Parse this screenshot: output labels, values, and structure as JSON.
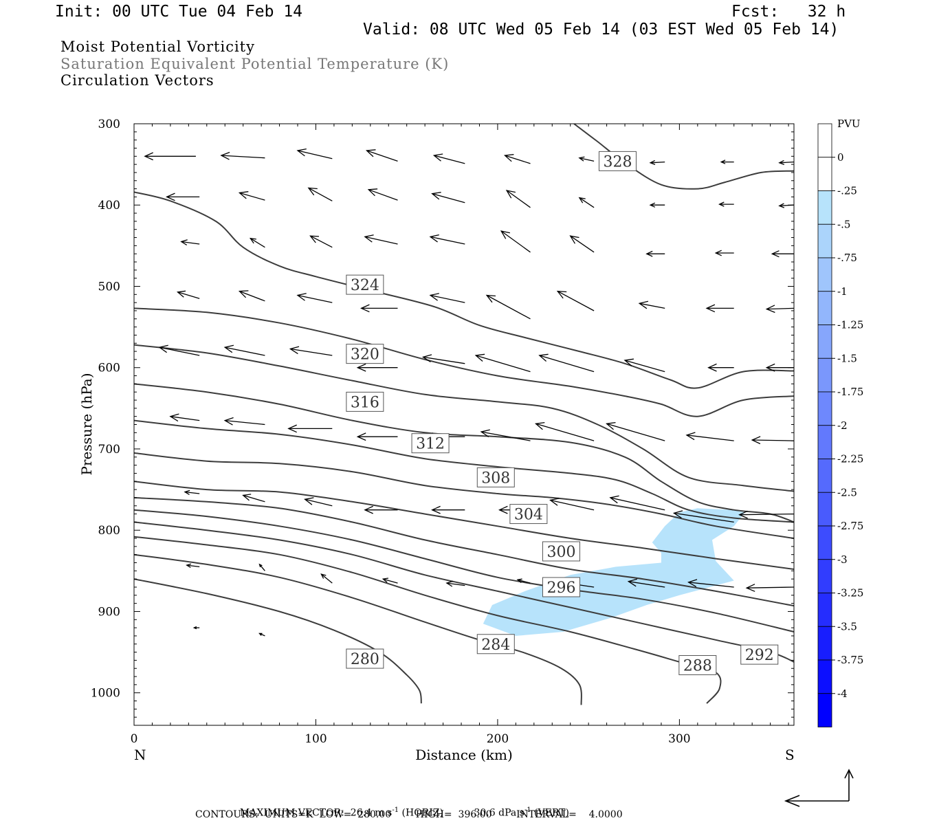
{
  "header": {
    "init": "Init: 00 UTC Tue 04 Feb 14",
    "fcst": "Fcst:   32 h",
    "valid": "Valid: 08 UTC Wed 05 Feb 14 (03 EST Wed 05 Feb 14)"
  },
  "fields": {
    "shaded": "Moist Potential Vorticity",
    "contour": "Saturation Equivalent Potential Temperature (K)",
    "vectors": "Circulation Vectors"
  },
  "footer": {
    "max_vector_label": "MAXIMUM VECTOR:",
    "horiz_value": "26.4 m s",
    "horiz_unit": "(HORIZ)",
    "vert_value": "30.6 dPa s",
    "vert_unit": "(VERT)",
    "exponent": "-1",
    "contours_line": "CONTOURS:  UNITS=K  LOW=  280.00        HIGH=  396.00        INTERVAL=    4.0000"
  },
  "colors": {
    "contour": "#3c3c3c",
    "mpv_shade": "#b7e3fb",
    "bar_top": "#ffffff",
    "bar_bottom": "#0000ff"
  },
  "chart_data": {
    "type": "cross-section",
    "xlabel": "Distance (km)",
    "ylabel": "Pressure (hPa)",
    "xlim": [
      0,
      363
    ],
    "ylim": [
      1040,
      300
    ],
    "x_ticks": [
      0,
      100,
      200,
      300
    ],
    "y_ticks": [
      300,
      400,
      500,
      600,
      700,
      800,
      900,
      1000
    ],
    "x_end_labels": {
      "left": "N",
      "right": "S"
    },
    "colorbar": {
      "title": "PVU",
      "levels": [
        "0",
        "-.25",
        "-.5",
        "-.75",
        "-1",
        "-1.25",
        "-1.5",
        "-1.75",
        "-2",
        "-2.25",
        "-2.5",
        "-2.75",
        "-3",
        "-3.25",
        "-3.5",
        "-3.75",
        "-4"
      ]
    },
    "contours": [
      {
        "level": 280,
        "label": "280",
        "label_at": [
          127,
          958
        ],
        "points": [
          [
            0,
            860
          ],
          [
            40,
            878
          ],
          [
            80,
            900
          ],
          [
            110,
            923
          ],
          [
            135,
            950
          ],
          [
            150,
            978
          ],
          [
            157,
            997
          ],
          [
            158,
            1013
          ]
        ]
      },
      {
        "level": 284,
        "label": "284",
        "label_at": [
          199,
          940
        ],
        "points": [
          [
            0,
            830
          ],
          [
            40,
            842
          ],
          [
            80,
            858
          ],
          [
            120,
            883
          ],
          [
            160,
            913
          ],
          [
            190,
            935
          ],
          [
            215,
            951
          ],
          [
            235,
            970
          ],
          [
            245,
            990
          ],
          [
            246,
            1015
          ]
        ]
      },
      {
        "level": 288,
        "label": "288",
        "label_at": [
          310,
          966
        ],
        "points": [
          [
            0,
            808
          ],
          [
            40,
            818
          ],
          [
            80,
            830
          ],
          [
            120,
            852
          ],
          [
            160,
            880
          ],
          [
            200,
            905
          ],
          [
            240,
            925
          ],
          [
            275,
            946
          ],
          [
            300,
            962
          ],
          [
            320,
            975
          ],
          [
            322,
            995
          ],
          [
            315,
            1013
          ]
        ]
      },
      {
        "level": 292,
        "label": "292",
        "label_at": [
          344,
          953
        ],
        "points": [
          [
            0,
            790
          ],
          [
            40,
            800
          ],
          [
            80,
            812
          ],
          [
            120,
            830
          ],
          [
            160,
            855
          ],
          [
            200,
            875
          ],
          [
            240,
            895
          ],
          [
            280,
            915
          ],
          [
            320,
            935
          ],
          [
            350,
            950
          ],
          [
            363,
            962
          ]
        ]
      },
      {
        "level": 296,
        "label": "296",
        "label_at": [
          235,
          870
        ],
        "points": [
          [
            0,
            775
          ],
          [
            40,
            783
          ],
          [
            80,
            795
          ],
          [
            120,
            812
          ],
          [
            160,
            835
          ],
          [
            200,
            858
          ],
          [
            240,
            873
          ],
          [
            280,
            885
          ],
          [
            320,
            902
          ],
          [
            363,
            925
          ]
        ]
      },
      {
        "level": 300,
        "label": "300",
        "label_at": [
          235,
          826
        ],
        "points": [
          [
            0,
            760
          ],
          [
            40,
            765
          ],
          [
            80,
            773
          ],
          [
            120,
            790
          ],
          [
            160,
            812
          ],
          [
            200,
            830
          ],
          [
            240,
            848
          ],
          [
            280,
            860
          ],
          [
            320,
            875
          ],
          [
            363,
            893
          ]
        ]
      },
      {
        "level": 304,
        "label": "304",
        "label_at": [
          217,
          780
        ],
        "points": [
          [
            0,
            740
          ],
          [
            40,
            750
          ],
          [
            80,
            753
          ],
          [
            120,
            765
          ],
          [
            160,
            780
          ],
          [
            200,
            795
          ],
          [
            240,
            810
          ],
          [
            280,
            822
          ],
          [
            320,
            835
          ],
          [
            363,
            848
          ]
        ]
      },
      {
        "level": 308,
        "label": "308",
        "label_at": [
          199,
          735
        ],
        "points": [
          [
            0,
            705
          ],
          [
            40,
            715
          ],
          [
            80,
            718
          ],
          [
            120,
            728
          ],
          [
            160,
            745
          ],
          [
            200,
            755
          ],
          [
            230,
            760
          ],
          [
            260,
            768
          ],
          [
            290,
            780
          ],
          [
            320,
            795
          ],
          [
            363,
            810
          ]
        ]
      },
      {
        "level": 312,
        "label": "312",
        "label_at": [
          163,
          693
        ],
        "points": [
          [
            0,
            665
          ],
          [
            40,
            675
          ],
          [
            80,
            682
          ],
          [
            120,
            695
          ],
          [
            160,
            712
          ],
          [
            200,
            722
          ],
          [
            240,
            730
          ],
          [
            265,
            738
          ],
          [
            285,
            755
          ],
          [
            305,
            775
          ],
          [
            330,
            785
          ],
          [
            363,
            790
          ]
        ]
      },
      {
        "level": 316,
        "label": "316",
        "label_at": [
          127,
          642
        ],
        "points": [
          [
            0,
            620
          ],
          [
            40,
            630
          ],
          [
            80,
            645
          ],
          [
            120,
            665
          ],
          [
            160,
            680
          ],
          [
            200,
            685
          ],
          [
            240,
            692
          ],
          [
            270,
            710
          ],
          [
            290,
            740
          ],
          [
            310,
            765
          ],
          [
            330,
            775
          ],
          [
            350,
            780
          ],
          [
            363,
            790
          ]
        ]
      },
      {
        "level": 320,
        "label": "320",
        "label_at": [
          127,
          583
        ],
        "points": [
          [
            0,
            572
          ],
          [
            40,
            582
          ],
          [
            80,
            598
          ],
          [
            120,
            616
          ],
          [
            160,
            633
          ],
          [
            200,
            642
          ],
          [
            230,
            650
          ],
          [
            255,
            670
          ],
          [
            280,
            700
          ],
          [
            305,
            735
          ],
          [
            335,
            745
          ],
          [
            363,
            752
          ]
        ]
      },
      {
        "level": 324,
        "label": "324",
        "label_at": [
          127,
          498
        ],
        "points": [
          [
            0,
            527
          ],
          [
            40,
            532
          ],
          [
            80,
            545
          ],
          [
            120,
            565
          ],
          [
            160,
            590
          ],
          [
            200,
            610
          ],
          [
            240,
            623
          ],
          [
            270,
            635
          ],
          [
            290,
            645
          ],
          [
            310,
            660
          ],
          [
            335,
            640
          ],
          [
            363,
            635
          ]
        ]
      },
      {
        "level": 328,
        "label": "328",
        "label_at": [
          266,
          346
        ],
        "points": [
          [
            0,
            384
          ],
          [
            20,
            395
          ],
          [
            45,
            420
          ],
          [
            60,
            452
          ],
          [
            80,
            475
          ],
          [
            100,
            488
          ],
          [
            130,
            505
          ],
          [
            165,
            525
          ],
          [
            190,
            548
          ],
          [
            215,
            563
          ],
          [
            245,
            580
          ],
          [
            270,
            595
          ],
          [
            295,
            615
          ],
          [
            310,
            625
          ],
          [
            335,
            605
          ],
          [
            363,
            604
          ]
        ]
      },
      {
        "level": 332,
        "label": "",
        "label_at": null,
        "points": [
          [
            242,
            300
          ],
          [
            255,
            322
          ],
          [
            270,
            348
          ],
          [
            290,
            375
          ],
          [
            310,
            380
          ],
          [
            325,
            372
          ],
          [
            345,
            360
          ],
          [
            363,
            358
          ]
        ]
      }
    ],
    "mpv_region": {
      "value": "-.25 to -.5",
      "polygon": [
        [
          285,
          815
        ],
        [
          292,
          795
        ],
        [
          300,
          778
        ],
        [
          310,
          773
        ],
        [
          330,
          775
        ],
        [
          336,
          778
        ],
        [
          330,
          795
        ],
        [
          318,
          812
        ],
        [
          320,
          838
        ],
        [
          330,
          862
        ],
        [
          300,
          880
        ],
        [
          282,
          892
        ],
        [
          262,
          908
        ],
        [
          236,
          925
        ],
        [
          210,
          930
        ],
        [
          192,
          915
        ],
        [
          197,
          892
        ],
        [
          215,
          875
        ],
        [
          240,
          855
        ],
        [
          265,
          845
        ],
        [
          290,
          840
        ],
        [
          290,
          828
        ]
      ]
    },
    "vectors": [
      [
        34,
        340,
        -28,
        0
      ],
      [
        72,
        342,
        -24,
        3
      ],
      [
        109,
        343,
        -19,
        10
      ],
      [
        145,
        346,
        -17,
        13
      ],
      [
        182,
        349,
        -17,
        10
      ],
      [
        218,
        349,
        -14,
        10
      ],
      [
        253,
        346,
        -8,
        4
      ],
      [
        292,
        347,
        -8,
        -1
      ],
      [
        330,
        347,
        -7,
        0
      ],
      [
        363,
        347,
        -8,
        -1
      ],
      [
        36,
        390,
        -18,
        0
      ],
      [
        72,
        394,
        -14,
        9
      ],
      [
        109,
        395,
        -13,
        16
      ],
      [
        145,
        394,
        -16,
        13
      ],
      [
        182,
        397,
        -18,
        11
      ],
      [
        218,
        403,
        -13,
        21
      ],
      [
        253,
        403,
        -8,
        12
      ],
      [
        292,
        400,
        -8,
        0
      ],
      [
        330,
        399,
        -8,
        0
      ],
      [
        363,
        400,
        -8,
        -1
      ],
      [
        36,
        448,
        -10,
        3
      ],
      [
        72,
        452,
        -8,
        11
      ],
      [
        109,
        452,
        -12,
        14
      ],
      [
        145,
        448,
        -18,
        9
      ],
      [
        182,
        448,
        -19,
        9
      ],
      [
        218,
        458,
        -16,
        26
      ],
      [
        253,
        458,
        -13,
        20
      ],
      [
        292,
        460,
        -10,
        0
      ],
      [
        330,
        459,
        -10,
        0
      ],
      [
        363,
        460,
        -12,
        0
      ],
      [
        36,
        515,
        -12,
        8
      ],
      [
        72,
        518,
        -14,
        12
      ],
      [
        109,
        520,
        -19,
        9
      ],
      [
        145,
        527,
        -20,
        0
      ],
      [
        182,
        520,
        -19,
        9
      ],
      [
        218,
        540,
        -24,
        29
      ],
      [
        253,
        530,
        -20,
        24
      ],
      [
        292,
        527,
        -14,
        6
      ],
      [
        330,
        527,
        -15,
        0
      ],
      [
        363,
        527,
        -15,
        -1
      ],
      [
        36,
        585,
        -22,
        10
      ],
      [
        72,
        585,
        -22,
        10
      ],
      [
        109,
        585,
        -23,
        8
      ],
      [
        145,
        600,
        -22,
        0
      ],
      [
        182,
        595,
        -23,
        8
      ],
      [
        218,
        605,
        -30,
        20
      ],
      [
        253,
        605,
        -30,
        20
      ],
      [
        292,
        605,
        -22,
        14
      ],
      [
        330,
        600,
        -14,
        0
      ],
      [
        363,
        600,
        -15,
        0
      ],
      [
        36,
        665,
        -16,
        5
      ],
      [
        72,
        670,
        -22,
        5
      ],
      [
        109,
        675,
        -24,
        0
      ],
      [
        145,
        685,
        -22,
        0
      ],
      [
        182,
        685,
        -22,
        0
      ],
      [
        218,
        690,
        -27,
        11
      ],
      [
        253,
        690,
        -32,
        21
      ],
      [
        292,
        690,
        -32,
        21
      ],
      [
        330,
        690,
        -26,
        7
      ],
      [
        363,
        690,
        -23,
        1
      ],
      [
        36,
        755,
        -8,
        2
      ],
      [
        72,
        765,
        -12,
        8
      ],
      [
        109,
        770,
        -15,
        8
      ],
      [
        145,
        775,
        -18,
        0
      ],
      [
        182,
        775,
        -18,
        0
      ],
      [
        218,
        775,
        -17,
        0
      ],
      [
        253,
        775,
        -24,
        12
      ],
      [
        292,
        775,
        -30,
        15
      ],
      [
        330,
        790,
        -33,
        11
      ],
      [
        363,
        780,
        -30,
        -1
      ],
      [
        36,
        845,
        -7,
        2
      ],
      [
        72,
        850,
        -3,
        8
      ],
      [
        109,
        865,
        -6,
        11
      ],
      [
        145,
        865,
        -8,
        5
      ],
      [
        182,
        868,
        -10,
        3
      ],
      [
        218,
        865,
        -7,
        4
      ],
      [
        253,
        870,
        -18,
        6
      ],
      [
        292,
        870,
        -20,
        7
      ],
      [
        330,
        870,
        -25,
        6
      ],
      [
        363,
        870,
        -26,
        -1
      ],
      [
        36,
        920,
        -3,
        0
      ],
      [
        72,
        930,
        -3,
        3
      ]
    ]
  }
}
